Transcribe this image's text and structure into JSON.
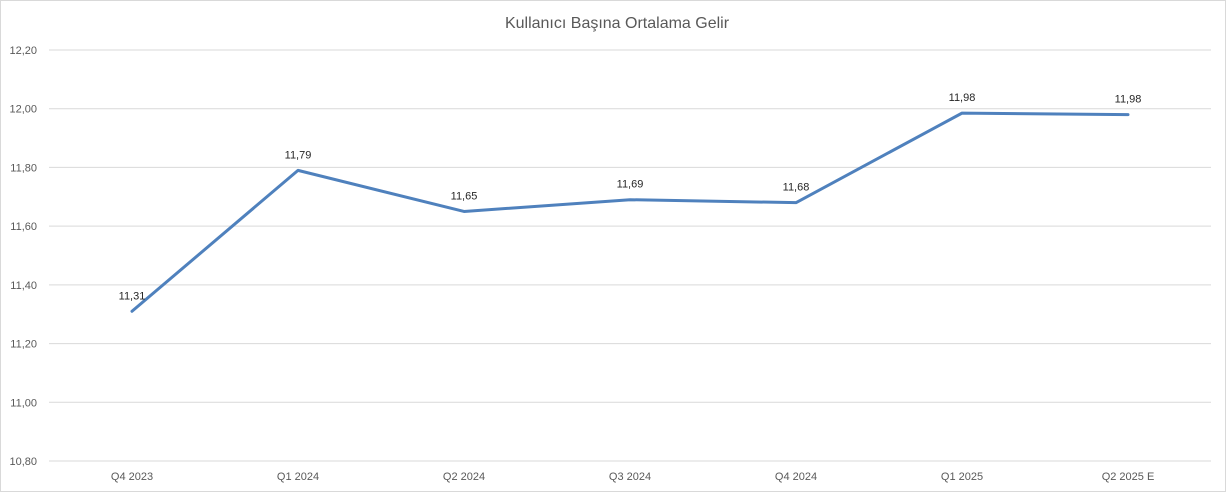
{
  "chart_data": {
    "type": "line",
    "title": "Kullanıcı Başına Ortalama Gelir",
    "xlabel": "",
    "ylabel": "",
    "categories": [
      "Q4 2023",
      "Q1 2024",
      "Q2 2024",
      "Q3 2024",
      "Q4 2024",
      "Q1 2025",
      "Q2 2025 E"
    ],
    "series": [
      {
        "values": [
          11.31,
          11.79,
          11.65,
          11.69,
          11.68,
          11.985,
          11.98
        ],
        "labels": [
          "11,31",
          "11,79",
          "11,65",
          "11,69",
          "11,68",
          "11,98",
          "11,98"
        ],
        "color": "#4f81bd"
      }
    ],
    "ylim": [
      10.8,
      12.2
    ],
    "yticks": [
      "10,80",
      "11,00",
      "11,20",
      "11,40",
      "11,60",
      "11,80",
      "12,00",
      "12,20"
    ],
    "grid": true,
    "legend": "none"
  }
}
